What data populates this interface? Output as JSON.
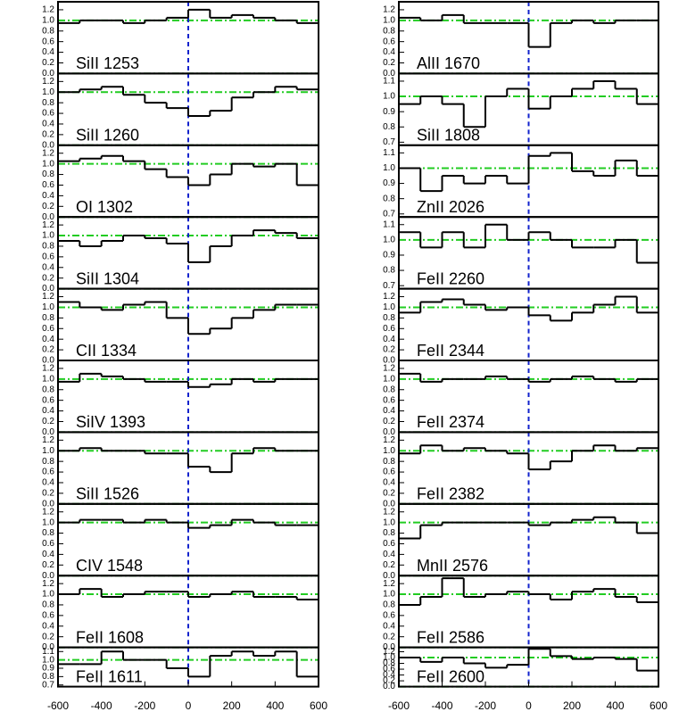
{
  "chart_data": [
    {
      "type": "step",
      "label": "SiII 1253",
      "x": [
        -550,
        -450,
        -350,
        -250,
        -150,
        -50,
        50,
        150,
        250,
        350,
        450,
        550
      ],
      "values": [
        0.95,
        1.0,
        1.0,
        0.95,
        1.0,
        1.05,
        1.2,
        1.05,
        1.1,
        1.05,
        1.0,
        0.95
      ],
      "xlim": [
        -600,
        600
      ],
      "ylim": [
        0,
        1.35
      ],
      "yticks": [
        {
          "value": 0,
          "label": "0.0"
        },
        0.2,
        0.4,
        0.6,
        0.8,
        {
          "value": 1,
          "label": "1.0"
        },
        1.2
      ],
      "hlines": [
        0,
        1
      ],
      "vline": 0,
      "color": "#000000",
      "hline_color": "#22cc22",
      "vline_color": "#1122cc"
    },
    {
      "type": "step",
      "label": "SiII 1260",
      "x": [
        -550,
        -450,
        -350,
        -250,
        -150,
        -50,
        50,
        150,
        250,
        350,
        450,
        550
      ],
      "values": [
        1.0,
        1.05,
        1.1,
        0.95,
        0.8,
        0.7,
        0.55,
        0.65,
        0.9,
        1.0,
        1.1,
        1.05
      ],
      "xlim": [
        -600,
        600
      ],
      "ylim": [
        0,
        1.35
      ],
      "yticks": [
        {
          "value": 0,
          "label": "0.0"
        },
        0.2,
        0.4,
        0.6,
        0.8,
        {
          "value": 1,
          "label": "1.0"
        },
        1.2
      ],
      "hlines": [
        0,
        1
      ],
      "vline": 0,
      "color": "#000000",
      "hline_color": "#22cc22",
      "vline_color": "#1122cc"
    },
    {
      "type": "step",
      "label": "OI 1302",
      "x": [
        -550,
        -450,
        -350,
        -250,
        -150,
        -50,
        50,
        150,
        250,
        350,
        450,
        550
      ],
      "values": [
        1.05,
        1.1,
        1.15,
        1.05,
        0.9,
        0.75,
        0.6,
        0.8,
        1.0,
        0.95,
        1.0,
        0.6
      ],
      "xlim": [
        -600,
        600
      ],
      "ylim": [
        0,
        1.35
      ],
      "yticks": [
        {
          "value": 0,
          "label": "0.0"
        },
        0.2,
        0.4,
        0.6,
        0.8,
        {
          "value": 1,
          "label": "1.0"
        },
        1.2
      ],
      "hlines": [
        0,
        1
      ],
      "vline": 0,
      "color": "#000000",
      "hline_color": "#22cc22",
      "vline_color": "#1122cc"
    },
    {
      "type": "step",
      "label": "SiII 1304",
      "x": [
        -550,
        -450,
        -350,
        -250,
        -150,
        -50,
        50,
        150,
        250,
        350,
        450,
        550
      ],
      "values": [
        0.9,
        0.8,
        0.9,
        1.0,
        0.95,
        0.85,
        0.5,
        0.8,
        1.0,
        1.1,
        1.05,
        0.95
      ],
      "xlim": [
        -600,
        600
      ],
      "ylim": [
        0,
        1.35
      ],
      "yticks": [
        {
          "value": 0,
          "label": "0.0"
        },
        0.2,
        0.4,
        0.6,
        0.8,
        {
          "value": 1,
          "label": "1.0"
        },
        1.2
      ],
      "hlines": [
        0,
        1
      ],
      "vline": 0,
      "color": "#000000",
      "hline_color": "#22cc22",
      "vline_color": "#1122cc"
    },
    {
      "type": "step",
      "label": "CII 1334",
      "x": [
        -550,
        -450,
        -350,
        -250,
        -150,
        -50,
        50,
        150,
        250,
        350,
        450,
        550
      ],
      "values": [
        1.1,
        1.0,
        0.95,
        1.05,
        1.1,
        0.8,
        0.5,
        0.6,
        0.8,
        0.95,
        1.05,
        1.05
      ],
      "xlim": [
        -600,
        600
      ],
      "ylim": [
        0,
        1.35
      ],
      "yticks": [
        {
          "value": 0,
          "label": "0.0"
        },
        0.2,
        0.4,
        0.6,
        0.8,
        {
          "value": 1,
          "label": "1.0"
        },
        1.2
      ],
      "hlines": [
        0,
        1
      ],
      "vline": 0,
      "color": "#000000",
      "hline_color": "#22cc22",
      "vline_color": "#1122cc"
    },
    {
      "type": "step",
      "label": "SiIV 1393",
      "x": [
        -550,
        -450,
        -350,
        -250,
        -150,
        -50,
        50,
        150,
        250,
        350,
        450,
        550
      ],
      "values": [
        0.95,
        1.1,
        1.05,
        1.0,
        0.95,
        0.95,
        0.85,
        0.9,
        1.0,
        0.95,
        1.0,
        1.0
      ],
      "xlim": [
        -600,
        600
      ],
      "ylim": [
        0,
        1.35
      ],
      "yticks": [
        {
          "value": 0,
          "label": "0.0"
        },
        0.2,
        0.4,
        0.6,
        0.8,
        {
          "value": 1,
          "label": "1.0"
        },
        1.2
      ],
      "hlines": [
        0,
        1
      ],
      "vline": 0,
      "color": "#000000",
      "hline_color": "#22cc22",
      "vline_color": "#1122cc"
    },
    {
      "type": "step",
      "label": "SiII 1526",
      "x": [
        -550,
        -450,
        -350,
        -250,
        -150,
        -50,
        50,
        150,
        250,
        350,
        450,
        550
      ],
      "values": [
        1.0,
        1.05,
        1.0,
        1.0,
        0.95,
        0.95,
        0.7,
        0.6,
        0.95,
        1.05,
        1.0,
        1.0
      ],
      "xlim": [
        -600,
        600
      ],
      "ylim": [
        0,
        1.35
      ],
      "yticks": [
        {
          "value": 0,
          "label": "0.0"
        },
        0.2,
        0.4,
        0.6,
        0.8,
        {
          "value": 1,
          "label": "1.0"
        },
        1.2
      ],
      "hlines": [
        0,
        1
      ],
      "vline": 0,
      "color": "#000000",
      "hline_color": "#22cc22",
      "vline_color": "#1122cc"
    },
    {
      "type": "step",
      "label": "CIV 1548",
      "x": [
        -550,
        -450,
        -350,
        -250,
        -150,
        -50,
        50,
        150,
        250,
        350,
        450,
        550
      ],
      "values": [
        1.0,
        1.05,
        1.05,
        1.0,
        1.05,
        1.0,
        0.9,
        0.95,
        1.05,
        1.0,
        0.95,
        0.95
      ],
      "xlim": [
        -600,
        600
      ],
      "ylim": [
        0,
        1.35
      ],
      "yticks": [
        {
          "value": 0,
          "label": "0.0"
        },
        0.2,
        0.4,
        0.6,
        0.8,
        {
          "value": 1,
          "label": "1.0"
        },
        1.2
      ],
      "hlines": [
        0,
        1
      ],
      "vline": 0,
      "color": "#000000",
      "hline_color": "#22cc22",
      "vline_color": "#1122cc"
    },
    {
      "type": "step",
      "label": "FeII 1608",
      "x": [
        -550,
        -450,
        -350,
        -250,
        -150,
        -50,
        50,
        150,
        250,
        350,
        450,
        550
      ],
      "values": [
        1.0,
        1.1,
        0.95,
        1.0,
        1.05,
        1.05,
        0.95,
        1.0,
        1.05,
        0.95,
        0.95,
        0.9
      ],
      "xlim": [
        -600,
        600
      ],
      "ylim": [
        0,
        1.35
      ],
      "yticks": [
        {
          "value": 0,
          "label": "0.0"
        },
        0.2,
        0.4,
        0.6,
        0.8,
        {
          "value": 1,
          "label": "1.0"
        },
        1.2
      ],
      "hlines": [
        0,
        1
      ],
      "vline": 0,
      "color": "#000000",
      "hline_color": "#22cc22",
      "vline_color": "#1122cc"
    },
    {
      "type": "step",
      "label": "FeII 1611",
      "x": [
        -550,
        -450,
        -350,
        -250,
        -150,
        -50,
        50,
        150,
        250,
        350,
        450,
        550
      ],
      "values": [
        0.95,
        0.95,
        1.1,
        1.0,
        1.0,
        0.9,
        0.8,
        1.05,
        1.1,
        1.05,
        1.1,
        0.8
      ],
      "xlim": [
        -600,
        600
      ],
      "ylim": [
        0.68,
        1.15
      ],
      "yticks": [
        0.7,
        0.8,
        0.9,
        {
          "value": 1,
          "label": "1.0"
        },
        1.1
      ],
      "hlines": [
        1
      ],
      "vline": 0,
      "color": "#000000",
      "hline_color": "#22cc22",
      "vline_color": "#1122cc",
      "xticks": [
        -600,
        -400,
        -200,
        0,
        200,
        400,
        600
      ]
    },
    {
      "type": "step",
      "label": "AlII 1670",
      "x": [
        -550,
        -450,
        -350,
        -250,
        -150,
        -50,
        50,
        150,
        250,
        350,
        450,
        550
      ],
      "values": [
        1.05,
        1.0,
        1.1,
        0.95,
        0.95,
        0.95,
        0.5,
        0.95,
        1.0,
        0.95,
        1.0,
        1.0
      ],
      "xlim": [
        -600,
        600
      ],
      "ylim": [
        0,
        1.35
      ],
      "yticks": [
        {
          "value": 0,
          "label": "0.0"
        },
        0.2,
        0.4,
        0.6,
        0.8,
        {
          "value": 1,
          "label": "1.0"
        },
        1.2
      ],
      "hlines": [
        0,
        1
      ],
      "vline": 0,
      "color": "#000000",
      "hline_color": "#22cc22",
      "vline_color": "#1122cc"
    },
    {
      "type": "step",
      "label": "SiII 1808",
      "x": [
        -550,
        -450,
        -350,
        -250,
        -150,
        -50,
        50,
        150,
        250,
        350,
        450,
        550
      ],
      "values": [
        0.95,
        1.0,
        0.95,
        0.8,
        1.0,
        1.05,
        0.92,
        1.0,
        1.05,
        1.1,
        1.05,
        0.95
      ],
      "xlim": [
        -600,
        600
      ],
      "ylim": [
        0.68,
        1.15
      ],
      "yticks": [
        0.7,
        0.8,
        0.9,
        {
          "value": 1,
          "label": "1.0"
        },
        1.1
      ],
      "hlines": [
        1
      ],
      "vline": 0,
      "color": "#000000",
      "hline_color": "#22cc22",
      "vline_color": "#1122cc"
    },
    {
      "type": "step",
      "label": "ZnII 2026",
      "x": [
        -550,
        -450,
        -350,
        -250,
        -150,
        -50,
        50,
        150,
        250,
        350,
        450,
        550
      ],
      "values": [
        1.0,
        0.85,
        0.95,
        0.9,
        0.95,
        0.9,
        1.08,
        1.1,
        0.98,
        0.95,
        1.05,
        0.95
      ],
      "xlim": [
        -600,
        600
      ],
      "ylim": [
        0.68,
        1.15
      ],
      "yticks": [
        0.7,
        0.8,
        0.9,
        {
          "value": 1,
          "label": "1.0"
        },
        1.1
      ],
      "hlines": [
        1
      ],
      "vline": 0,
      "color": "#000000",
      "hline_color": "#22cc22",
      "vline_color": "#1122cc"
    },
    {
      "type": "step",
      "label": "FeII 2260",
      "x": [
        -550,
        -450,
        -350,
        -250,
        -150,
        -50,
        50,
        150,
        250,
        350,
        450,
        550
      ],
      "values": [
        1.05,
        0.95,
        1.05,
        0.95,
        1.1,
        1.0,
        1.05,
        1.0,
        0.95,
        0.95,
        1.0,
        0.85
      ],
      "xlim": [
        -600,
        600
      ],
      "ylim": [
        0.68,
        1.15
      ],
      "yticks": [
        0.7,
        0.8,
        0.9,
        {
          "value": 1,
          "label": "1.0"
        },
        1.1
      ],
      "hlines": [
        1
      ],
      "vline": 0,
      "color": "#000000",
      "hline_color": "#22cc22",
      "vline_color": "#1122cc"
    },
    {
      "type": "step",
      "label": "FeII 2344",
      "x": [
        -550,
        -450,
        -350,
        -250,
        -150,
        -50,
        50,
        150,
        250,
        350,
        450,
        550
      ],
      "values": [
        0.9,
        1.1,
        1.15,
        1.05,
        0.95,
        1.0,
        0.85,
        0.75,
        0.9,
        1.05,
        1.2,
        0.9
      ],
      "xlim": [
        -600,
        600
      ],
      "ylim": [
        0,
        1.35
      ],
      "yticks": [
        {
          "value": 0,
          "label": "0.0"
        },
        0.2,
        0.4,
        0.6,
        0.8,
        {
          "value": 1,
          "label": "1.0"
        },
        1.2
      ],
      "hlines": [
        0,
        1
      ],
      "vline": 0,
      "color": "#000000",
      "hline_color": "#22cc22",
      "vline_color": "#1122cc"
    },
    {
      "type": "step",
      "label": "FeII 2374",
      "x": [
        -550,
        -450,
        -350,
        -250,
        -150,
        -50,
        50,
        150,
        250,
        350,
        450,
        550
      ],
      "values": [
        1.1,
        0.95,
        1.0,
        1.0,
        1.05,
        1.0,
        0.95,
        1.0,
        1.05,
        1.0,
        0.95,
        1.0
      ],
      "xlim": [
        -600,
        600
      ],
      "ylim": [
        0,
        1.35
      ],
      "yticks": [
        {
          "value": 0,
          "label": "0.0"
        },
        0.2,
        0.4,
        0.6,
        0.8,
        {
          "value": 1,
          "label": "1.0"
        },
        1.2
      ],
      "hlines": [
        0,
        1
      ],
      "vline": 0,
      "color": "#000000",
      "hline_color": "#22cc22",
      "vline_color": "#1122cc"
    },
    {
      "type": "step",
      "label": "FeII 2382",
      "x": [
        -550,
        -450,
        -350,
        -250,
        -150,
        -50,
        50,
        150,
        250,
        350,
        450,
        550
      ],
      "values": [
        0.95,
        1.1,
        1.0,
        1.05,
        1.0,
        0.95,
        0.65,
        0.8,
        1.0,
        1.1,
        1.0,
        1.05
      ],
      "xlim": [
        -600,
        600
      ],
      "ylim": [
        0,
        1.35
      ],
      "yticks": [
        {
          "value": 0,
          "label": "0.0"
        },
        0.2,
        0.4,
        0.6,
        0.8,
        {
          "value": 1,
          "label": "1.0"
        },
        1.2
      ],
      "hlines": [
        0,
        1
      ],
      "vline": 0,
      "color": "#000000",
      "hline_color": "#22cc22",
      "vline_color": "#1122cc"
    },
    {
      "type": "step",
      "label": "MnII 2576",
      "x": [
        -550,
        -450,
        -350,
        -250,
        -150,
        -50,
        50,
        150,
        250,
        350,
        450,
        550
      ],
      "values": [
        0.7,
        0.95,
        1.0,
        1.0,
        1.0,
        1.0,
        0.95,
        1.0,
        1.05,
        1.1,
        1.0,
        0.8
      ],
      "xlim": [
        -600,
        600
      ],
      "ylim": [
        0,
        1.35
      ],
      "yticks": [
        {
          "value": 0,
          "label": "0.0"
        },
        0.2,
        0.4,
        0.6,
        0.8,
        {
          "value": 1,
          "label": "1.0"
        },
        1.2
      ],
      "hlines": [
        0,
        1
      ],
      "vline": 0,
      "color": "#000000",
      "hline_color": "#22cc22",
      "vline_color": "#1122cc"
    },
    {
      "type": "step",
      "label": "FeII 2586",
      "x": [
        -550,
        -450,
        -350,
        -250,
        -150,
        -50,
        50,
        150,
        250,
        350,
        450,
        550
      ],
      "values": [
        0.8,
        0.95,
        1.3,
        0.95,
        1.0,
        1.05,
        1.0,
        0.9,
        1.05,
        1.1,
        0.95,
        0.85
      ],
      "xlim": [
        -600,
        600
      ],
      "ylim": [
        0,
        1.35
      ],
      "yticks": [
        {
          "value": 0,
          "label": "0.0"
        },
        0.2,
        0.4,
        0.6,
        0.8,
        {
          "value": 1,
          "label": "1.0"
        },
        1.2
      ],
      "hlines": [
        0,
        1
      ],
      "vline": 0,
      "color": "#000000",
      "hline_color": "#22cc22",
      "vline_color": "#1122cc"
    },
    {
      "type": "step",
      "label": "FeII 2600",
      "x": [
        -550,
        -450,
        -350,
        -250,
        -150,
        -50,
        50,
        150,
        250,
        350,
        450,
        550
      ],
      "values": [
        1.0,
        0.85,
        1.0,
        0.8,
        0.65,
        0.75,
        1.3,
        1.05,
        0.95,
        1.0,
        0.95,
        0.55
      ],
      "xlim": [
        -600,
        600
      ],
      "ylim": [
        0,
        1.35
      ],
      "yticks": [
        {
          "value": 0,
          "label": "0.0"
        },
        0.2,
        0.4,
        0.6,
        0.8,
        {
          "value": 1,
          "label": "1.0"
        },
        1.2
      ],
      "hlines": [
        0,
        1
      ],
      "vline": 0,
      "color": "#000000",
      "hline_color": "#22cc22",
      "vline_color": "#1122cc",
      "xticks": [
        -600,
        -400,
        -200,
        0,
        200,
        400,
        600
      ]
    }
  ]
}
